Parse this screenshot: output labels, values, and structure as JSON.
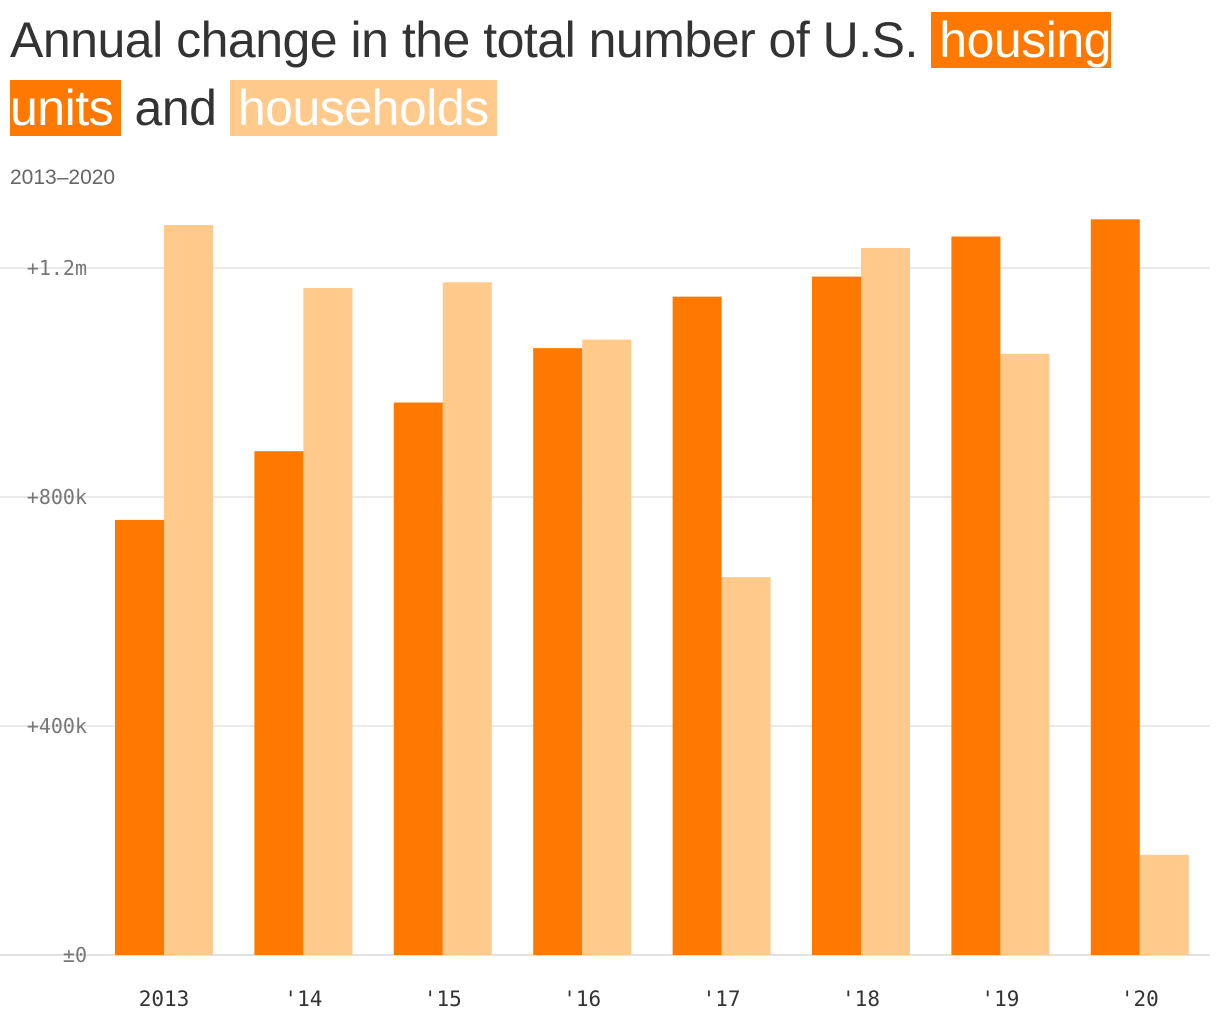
{
  "title": {
    "prefix": "Annual change in the total number of U.S.",
    "series1": "housing units",
    "connector": "and",
    "series2": "households"
  },
  "subtitle": "2013–2020",
  "colors": {
    "housing_units": "#ff7900",
    "households": "#ffca8c",
    "grid": "#e3e3e3",
    "text": "#333333"
  },
  "chart_data": {
    "type": "bar",
    "categories": [
      "2013",
      "'14",
      "'15",
      "'16",
      "'17",
      "'18",
      "'19",
      "'20"
    ],
    "series": [
      {
        "name": "housing units",
        "values": [
          760000,
          880000,
          965000,
          1060000,
          1150000,
          1185000,
          1255000,
          1285000
        ]
      },
      {
        "name": "households",
        "values": [
          1275000,
          1165000,
          1175000,
          1075000,
          660000,
          1235000,
          1050000,
          175000
        ]
      }
    ],
    "yticks": [
      {
        "value": 0,
        "label": "±0"
      },
      {
        "value": 400000,
        "label": "+400k"
      },
      {
        "value": 800000,
        "label": "+800k"
      },
      {
        "value": 1200000,
        "label": "+1.2m"
      }
    ],
    "ylim": [
      0,
      1310000
    ],
    "grid": true
  }
}
